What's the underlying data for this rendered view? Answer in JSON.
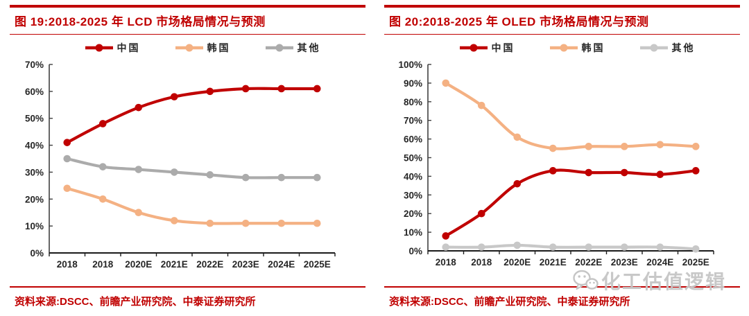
{
  "panels": [
    {
      "title": "图 19:2018-2025 年 LCD 市场格局情况与预测",
      "source": "资料来源:DSCC、前瞻产业研究院、中泰证券研究所"
    },
    {
      "title": "图 20:2018-2025 年 OLED 市场格局情况与预测",
      "source": "资料来源:DSCC、前瞻产业研究院、中泰证券研究所"
    }
  ],
  "chart_data": [
    {
      "type": "line",
      "title": "2018-2025 年 LCD 市场格局情况与预测",
      "categories": [
        "2018",
        "2018",
        "2020E",
        "2021E",
        "2022E",
        "2023E",
        "2024E",
        "2025E"
      ],
      "xlabel": "",
      "ylabel": "",
      "ylim": [
        0,
        70
      ],
      "ytick_step": 10,
      "ytick_format": "percent",
      "grid": false,
      "legend_position": "top",
      "series": [
        {
          "name": "中国",
          "color": "#C00000",
          "values": [
            41,
            48,
            54,
            58,
            60,
            61,
            61,
            61
          ]
        },
        {
          "name": "韩国",
          "color": "#F4B183",
          "values": [
            24,
            20,
            15,
            12,
            11,
            11,
            11,
            11
          ]
        },
        {
          "name": "其他",
          "color": "#ABABAB",
          "values": [
            35,
            32,
            31,
            30,
            29,
            28,
            28,
            28
          ]
        }
      ]
    },
    {
      "type": "line",
      "title": "2018-2025 年 OLED 市场格局情况与预测",
      "categories": [
        "2018",
        "2018",
        "2020E",
        "2021E",
        "2022E",
        "2023E",
        "2024E",
        "2025E"
      ],
      "xlabel": "",
      "ylabel": "",
      "ylim": [
        0,
        100
      ],
      "ytick_step": 10,
      "ytick_format": "percent",
      "grid": false,
      "legend_position": "top",
      "series": [
        {
          "name": "中国",
          "color": "#C00000",
          "values": [
            8,
            20,
            36,
            43,
            42,
            42,
            41,
            43
          ]
        },
        {
          "name": "韩国",
          "color": "#F4B183",
          "values": [
            90,
            78,
            61,
            55,
            56,
            56,
            57,
            56
          ]
        },
        {
          "name": "其他",
          "color": "#C8C8C8",
          "values": [
            2,
            2,
            3,
            2,
            2,
            2,
            2,
            1
          ]
        }
      ]
    }
  ],
  "watermark": {
    "icon": "wechat-icon",
    "text": "化工估值逻辑"
  },
  "colors": {
    "accent_red": "#C00000",
    "axis_dark": "#262626",
    "watermark_gray": "#C5C5C5"
  }
}
